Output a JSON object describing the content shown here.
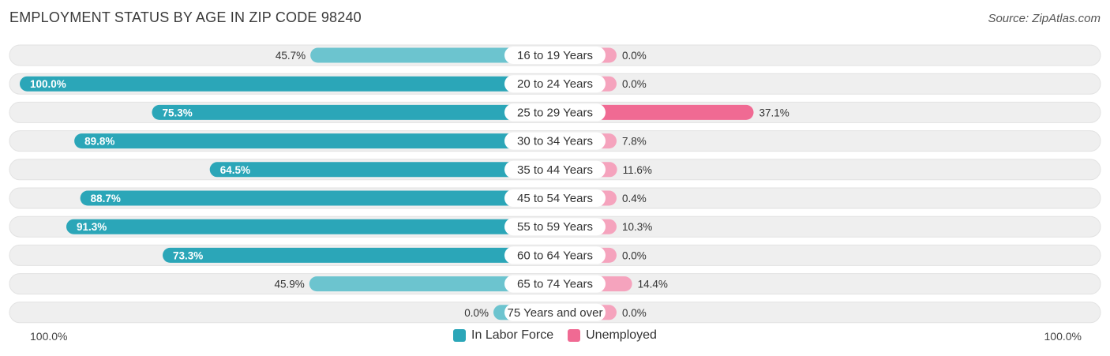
{
  "title": "EMPLOYMENT STATUS BY AGE IN ZIP CODE 98240",
  "source": "Source: ZipAtlas.com",
  "axis_left_label": "100.0%",
  "axis_right_label": "100.0%",
  "colors": {
    "labor_force": "#2ba6b8",
    "labor_force_light": "#6cc4cf",
    "unemployed": "#f06a93",
    "unemployed_light": "#f5a3bd",
    "row_bg": "#efefef"
  },
  "chart_data": {
    "type": "bar",
    "orientation": "horizontal-diverging",
    "categories": [
      "16 to 19 Years",
      "20 to 24 Years",
      "25 to 29 Years",
      "30 to 34 Years",
      "35 to 44 Years",
      "45 to 54 Years",
      "55 to 59 Years",
      "60 to 64 Years",
      "65 to 74 Years",
      "75 Years and over"
    ],
    "series": [
      {
        "name": "In Labor Force",
        "values": [
          45.7,
          100.0,
          75.3,
          89.8,
          64.5,
          88.7,
          91.3,
          73.3,
          45.9,
          0.0
        ]
      },
      {
        "name": "Unemployed",
        "values": [
          0.0,
          0.0,
          37.1,
          7.8,
          11.6,
          0.4,
          10.3,
          0.0,
          14.4,
          0.0
        ]
      }
    ],
    "labels_left": [
      "45.7%",
      "100.0%",
      "75.3%",
      "89.8%",
      "64.5%",
      "88.7%",
      "91.3%",
      "73.3%",
      "45.9%",
      "0.0%"
    ],
    "labels_right": [
      "0.0%",
      "0.0%",
      "37.1%",
      "7.8%",
      "11.6%",
      "0.4%",
      "10.3%",
      "0.0%",
      "14.4%",
      "0.0%"
    ],
    "xlim": [
      -100,
      100
    ],
    "legend_position": "bottom-center"
  }
}
